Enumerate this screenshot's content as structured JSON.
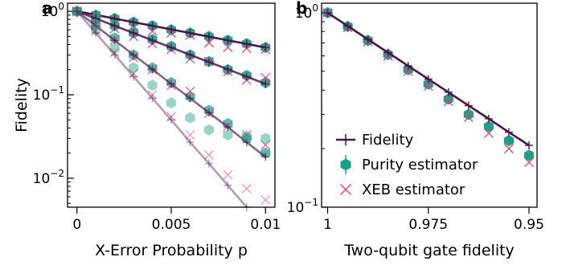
{
  "colors": {
    "fidelity": "#4a154b",
    "purity": "#1f9e89",
    "xeb": "#d6457a"
  },
  "chart_data": [
    {
      "panel_label": "a",
      "type": "line",
      "xlabel": "X-Error Probability p",
      "ylabel": "Fidelity",
      "xscale": "linear",
      "yscale": "log",
      "xlim": [
        -0.0005,
        0.0105
      ],
      "ylim": [
        0.0045,
        1.25
      ],
      "xticks": [
        0,
        0.005,
        0.01
      ],
      "xtick_labels": [
        "0",
        "0.005",
        "0.01"
      ],
      "yticks": [
        1,
        0.1,
        0.01
      ],
      "ytick_labels": [
        {
          "base": "10",
          "exp": "0"
        },
        {
          "base": "10",
          "exp": "−1"
        },
        {
          "base": "10",
          "exp": "−2"
        }
      ],
      "grid": false,
      "x": [
        0,
        0.001,
        0.002,
        0.003,
        0.004,
        0.005,
        0.006,
        0.007,
        0.008,
        0.009,
        0.01
      ],
      "series": [
        {
          "fidelity": [
            1.0,
            0.905,
            0.819,
            0.741,
            0.67,
            0.607,
            0.549,
            0.497,
            0.449,
            0.407,
            0.368
          ],
          "purity": [
            1.0,
            0.9,
            0.82,
            0.74,
            0.67,
            0.6,
            0.55,
            0.5,
            0.45,
            0.41,
            0.37
          ],
          "xeb": [
            1.0,
            0.88,
            0.76,
            0.67,
            0.58,
            0.55,
            0.52,
            0.42,
            0.37,
            0.36,
            0.35
          ]
        },
        {
          "fidelity": [
            1.0,
            0.819,
            0.67,
            0.549,
            0.449,
            0.368,
            0.301,
            0.247,
            0.202,
            0.165,
            0.135
          ],
          "purity": [
            1.0,
            0.83,
            0.67,
            0.55,
            0.46,
            0.38,
            0.3,
            0.25,
            0.2,
            0.17,
            0.14
          ],
          "xeb": [
            1.0,
            0.8,
            0.62,
            0.5,
            0.41,
            0.35,
            0.27,
            0.25,
            0.19,
            0.15,
            0.16
          ]
        },
        {
          "fidelity": [
            1.0,
            0.67,
            0.449,
            0.301,
            0.202,
            0.135,
            0.091,
            0.061,
            0.041,
            0.027,
            0.018
          ],
          "purity": [
            1.0,
            0.7,
            0.48,
            0.3,
            0.21,
            0.14,
            0.095,
            0.065,
            0.045,
            0.03,
            0.02
          ],
          "xeb": [
            1.0,
            0.68,
            0.45,
            0.28,
            0.2,
            0.13,
            0.11,
            0.06,
            0.042,
            0.033,
            0.025
          ]
        },
        {
          "fidelity": [
            1.0,
            0.549,
            0.301,
            0.165,
            0.091,
            0.05,
            0.027,
            0.015,
            0.0082,
            0.0045,
            0.0025
          ],
          "purity": [
            1.0,
            0.6,
            0.36,
            0.21,
            0.13,
            0.08,
            0.053,
            0.038,
            0.033,
            0.032,
            0.03
          ],
          "xeb": [
            1.0,
            0.58,
            0.32,
            0.18,
            0.1,
            0.055,
            0.033,
            0.019,
            0.011,
            0.0075,
            0.0055
          ]
        }
      ]
    },
    {
      "panel_label": "b",
      "type": "line",
      "xlabel": "Two-qubit gate fidelity",
      "ylabel": "",
      "xscale": "linear",
      "yscale": "log",
      "xlim": [
        1.0015,
        0.948
      ],
      "ylim": [
        0.1,
        1.12
      ],
      "xticks": [
        1,
        0.975,
        0.95
      ],
      "xtick_labels": [
        "1",
        "0.975",
        "0.95"
      ],
      "yticks": [
        1,
        0.1
      ],
      "ytick_labels": [
        {
          "base": "10",
          "exp": "0"
        },
        {
          "base": "10",
          "exp": "−1"
        }
      ],
      "grid": false,
      "x": [
        1.0,
        0.995,
        0.99,
        0.985,
        0.98,
        0.975,
        0.97,
        0.965,
        0.96,
        0.955,
        0.95
      ],
      "fidelity": [
        1.0,
        0.855,
        0.73,
        0.624,
        0.533,
        0.456,
        0.39,
        0.333,
        0.285,
        0.243,
        0.208
      ],
      "purity": [
        1.0,
        0.85,
        0.72,
        0.61,
        0.51,
        0.43,
        0.36,
        0.3,
        0.26,
        0.22,
        0.185
      ],
      "xeb": [
        1.0,
        0.84,
        0.71,
        0.6,
        0.5,
        0.42,
        0.35,
        0.29,
        0.24,
        0.2,
        0.17
      ],
      "legend": {
        "position": "lower-left",
        "entries": [
          "Fidelity",
          "Purity estimator",
          "XEB estimator"
        ]
      }
    }
  ]
}
